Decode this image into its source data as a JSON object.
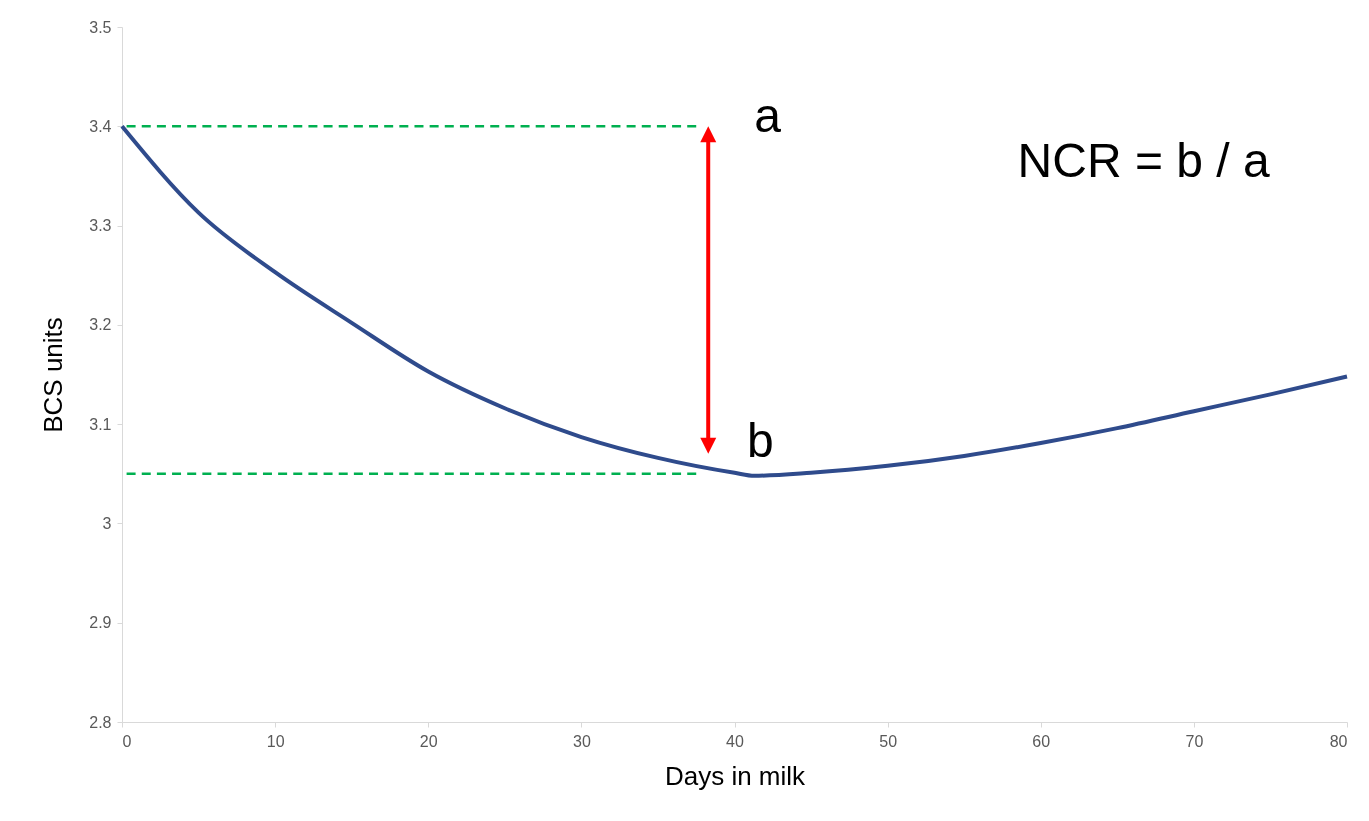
{
  "chart_data": {
    "type": "line",
    "xlabel": "Days in milk",
    "ylabel": "BCS units",
    "xlim": [
      0,
      80
    ],
    "xticks": [
      0,
      10,
      20,
      30,
      40,
      50,
      60,
      70,
      80
    ],
    "ylim": [
      2.8,
      3.5
    ],
    "yticks": [
      2.8,
      2.9,
      3,
      3.1,
      3.2,
      3.3,
      3.4,
      3.5
    ],
    "grid": false,
    "series": [
      {
        "color": "#2f4b8c",
        "line_style": "solid",
        "x": [
          0,
          5,
          10,
          15,
          20,
          25,
          30,
          35,
          40,
          41.3,
          45,
          50,
          55,
          60,
          65,
          70,
          75,
          80
        ],
        "values": [
          3.4,
          3.313,
          3.253,
          3.202,
          3.153,
          3.116,
          3.087,
          3.066,
          3.051,
          3.048,
          3.051,
          3.058,
          3.068,
          3.081,
          3.096,
          3.113,
          3.13,
          3.148
        ]
      },
      {
        "color": "#00b050",
        "line_style": "dashed",
        "x": [
          0.3,
          37.5
        ],
        "values": [
          3.4,
          3.4
        ]
      },
      {
        "color": "#00b050",
        "line_style": "dashed",
        "x": [
          0.3,
          37.5
        ],
        "values": [
          3.05,
          3.05
        ]
      }
    ],
    "annotations": [
      "a",
      "b",
      "NCR = b / a"
    ]
  }
}
